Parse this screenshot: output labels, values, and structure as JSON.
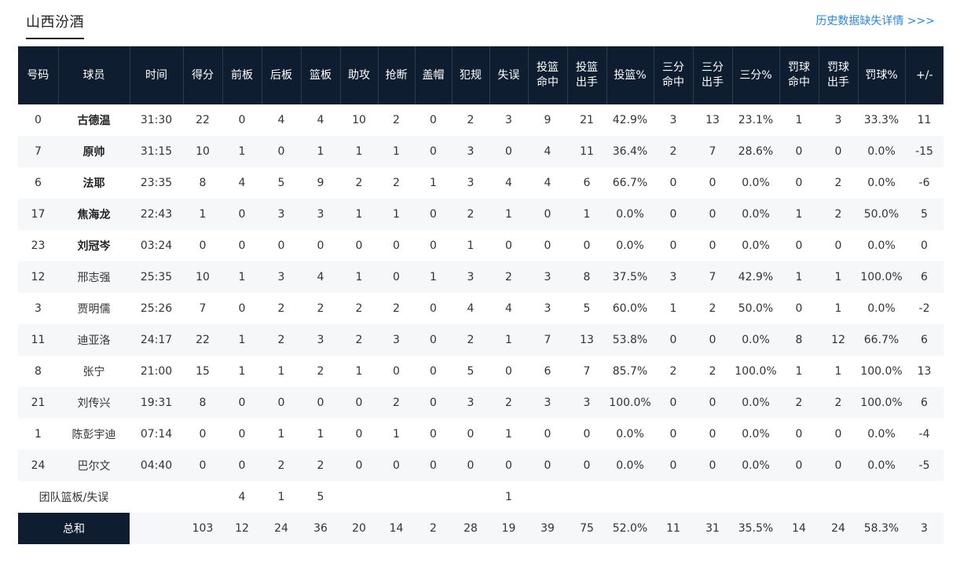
{
  "team_tab": "山西汾酒",
  "history_link": "历史数据缺失详情 >>>",
  "columns": [
    {
      "label": "号码"
    },
    {
      "label": "球员"
    },
    {
      "label": "时间"
    },
    {
      "label": "得分"
    },
    {
      "label": "前板"
    },
    {
      "label": "后板"
    },
    {
      "label": "篮板"
    },
    {
      "label": "助攻"
    },
    {
      "label": "抢断"
    },
    {
      "label": "盖帽"
    },
    {
      "label": "犯规"
    },
    {
      "label": "失误"
    },
    {
      "label": "投篮\n命中"
    },
    {
      "label": "投篮\n出手"
    },
    {
      "label": "投篮%"
    },
    {
      "label": "三分\n命中"
    },
    {
      "label": "三分\n出手"
    },
    {
      "label": "三分%"
    },
    {
      "label": "罚球\n命中"
    },
    {
      "label": "罚球\n出手"
    },
    {
      "label": "罚球%"
    },
    {
      "label": "+/-"
    }
  ],
  "players": [
    {
      "starter": true,
      "cells": [
        "0",
        "古德温",
        "31:30",
        "22",
        "0",
        "4",
        "4",
        "10",
        "2",
        "0",
        "2",
        "3",
        "9",
        "21",
        "42.9%",
        "3",
        "13",
        "23.1%",
        "1",
        "3",
        "33.3%",
        "11"
      ]
    },
    {
      "starter": true,
      "cells": [
        "7",
        "原帅",
        "31:15",
        "10",
        "1",
        "0",
        "1",
        "1",
        "1",
        "0",
        "3",
        "0",
        "4",
        "11",
        "36.4%",
        "2",
        "7",
        "28.6%",
        "0",
        "0",
        "0.0%",
        "-15"
      ]
    },
    {
      "starter": true,
      "cells": [
        "6",
        "法耶",
        "23:35",
        "8",
        "4",
        "5",
        "9",
        "2",
        "2",
        "1",
        "3",
        "4",
        "4",
        "6",
        "66.7%",
        "0",
        "0",
        "0.0%",
        "0",
        "2",
        "0.0%",
        "-6"
      ]
    },
    {
      "starter": true,
      "cells": [
        "17",
        "焦海龙",
        "22:43",
        "1",
        "0",
        "3",
        "3",
        "1",
        "1",
        "0",
        "2",
        "1",
        "0",
        "1",
        "0.0%",
        "0",
        "0",
        "0.0%",
        "1",
        "2",
        "50.0%",
        "5"
      ]
    },
    {
      "starter": true,
      "cells": [
        "23",
        "刘冠岑",
        "03:24",
        "0",
        "0",
        "0",
        "0",
        "0",
        "0",
        "0",
        "1",
        "0",
        "0",
        "0",
        "0.0%",
        "0",
        "0",
        "0.0%",
        "0",
        "0",
        "0.0%",
        "0"
      ]
    },
    {
      "starter": false,
      "cells": [
        "12",
        "邢志强",
        "25:35",
        "10",
        "1",
        "3",
        "4",
        "1",
        "0",
        "1",
        "3",
        "2",
        "3",
        "8",
        "37.5%",
        "3",
        "7",
        "42.9%",
        "1",
        "1",
        "100.0%",
        "6"
      ]
    },
    {
      "starter": false,
      "cells": [
        "3",
        "贾明儒",
        "25:26",
        "7",
        "0",
        "2",
        "2",
        "2",
        "2",
        "0",
        "4",
        "4",
        "3",
        "5",
        "60.0%",
        "1",
        "2",
        "50.0%",
        "0",
        "1",
        "0.0%",
        "-2"
      ]
    },
    {
      "starter": false,
      "cells": [
        "11",
        "迪亚洛",
        "24:17",
        "22",
        "1",
        "2",
        "3",
        "2",
        "3",
        "0",
        "2",
        "1",
        "7",
        "13",
        "53.8%",
        "0",
        "0",
        "0.0%",
        "8",
        "12",
        "66.7%",
        "6"
      ]
    },
    {
      "starter": false,
      "cells": [
        "8",
        "张宁",
        "21:00",
        "15",
        "1",
        "1",
        "2",
        "1",
        "0",
        "0",
        "5",
        "0",
        "6",
        "7",
        "85.7%",
        "2",
        "2",
        "100.0%",
        "1",
        "1",
        "100.0%",
        "13"
      ]
    },
    {
      "starter": false,
      "cells": [
        "21",
        "刘传兴",
        "19:31",
        "8",
        "0",
        "0",
        "0",
        "0",
        "2",
        "0",
        "3",
        "2",
        "3",
        "3",
        "100.0%",
        "0",
        "0",
        "0.0%",
        "2",
        "2",
        "100.0%",
        "6"
      ]
    },
    {
      "starter": false,
      "cells": [
        "1",
        "陈彭宇迪",
        "07:14",
        "0",
        "0",
        "1",
        "1",
        "0",
        "1",
        "0",
        "0",
        "1",
        "0",
        "0",
        "0.0%",
        "0",
        "0",
        "0.0%",
        "0",
        "0",
        "0.0%",
        "-4"
      ]
    },
    {
      "starter": false,
      "cells": [
        "24",
        "巴尔文",
        "04:40",
        "0",
        "0",
        "2",
        "2",
        "0",
        "0",
        "0",
        "0",
        "0",
        "0",
        "0",
        "0.0%",
        "0",
        "0",
        "0.0%",
        "0",
        "0",
        "0.0%",
        "-5"
      ]
    }
  ],
  "team_row": {
    "label": "团队篮板/失误",
    "off_reb": "4",
    "def_reb": "1",
    "reb": "5",
    "turnovers": "1"
  },
  "totals": {
    "label": "总和",
    "cells": [
      "103",
      "12",
      "24",
      "36",
      "20",
      "14",
      "2",
      "28",
      "19",
      "39",
      "75",
      "52.0%",
      "11",
      "31",
      "35.5%",
      "14",
      "24",
      "58.3%",
      "3"
    ]
  }
}
